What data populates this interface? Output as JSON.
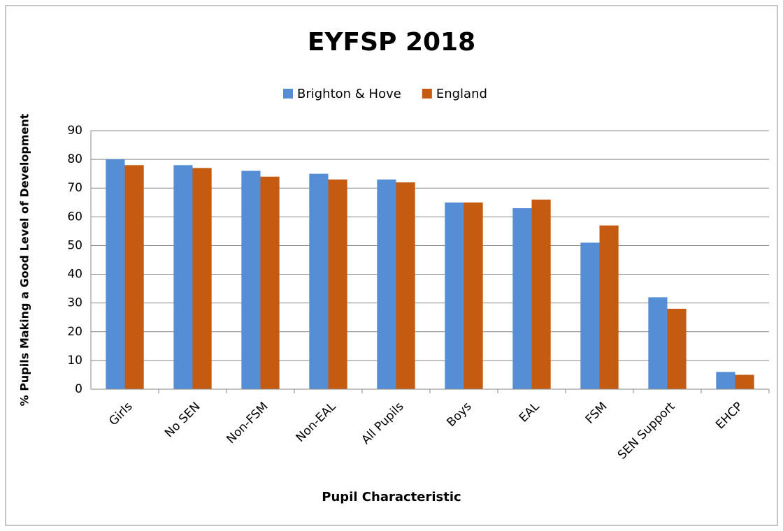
{
  "chart_data": {
    "type": "bar",
    "title": "EYFSP 2018",
    "xlabel": "Pupil Characteristic",
    "ylabel": "% Pupils Making a Good Level of Development",
    "categories": [
      "Girls",
      "No SEN",
      "Non-FSM",
      "Non-EAL",
      "All Pupils",
      "Boys",
      "EAL",
      "FSM",
      "SEN Support",
      "EHCP"
    ],
    "series": [
      {
        "name": "Brighton & Hove",
        "color": "#558ed5",
        "values": [
          80,
          78,
          76,
          75,
          73,
          65,
          63,
          51,
          32,
          6
        ]
      },
      {
        "name": "England",
        "color": "#c55a11",
        "values": [
          78,
          77,
          74,
          73,
          72,
          65,
          66,
          57,
          28,
          5
        ]
      }
    ],
    "ylim": [
      0,
      90
    ],
    "yticks": [
      0,
      10,
      20,
      30,
      40,
      50,
      60,
      70,
      80,
      90
    ],
    "grid": true,
    "legend": "top"
  }
}
